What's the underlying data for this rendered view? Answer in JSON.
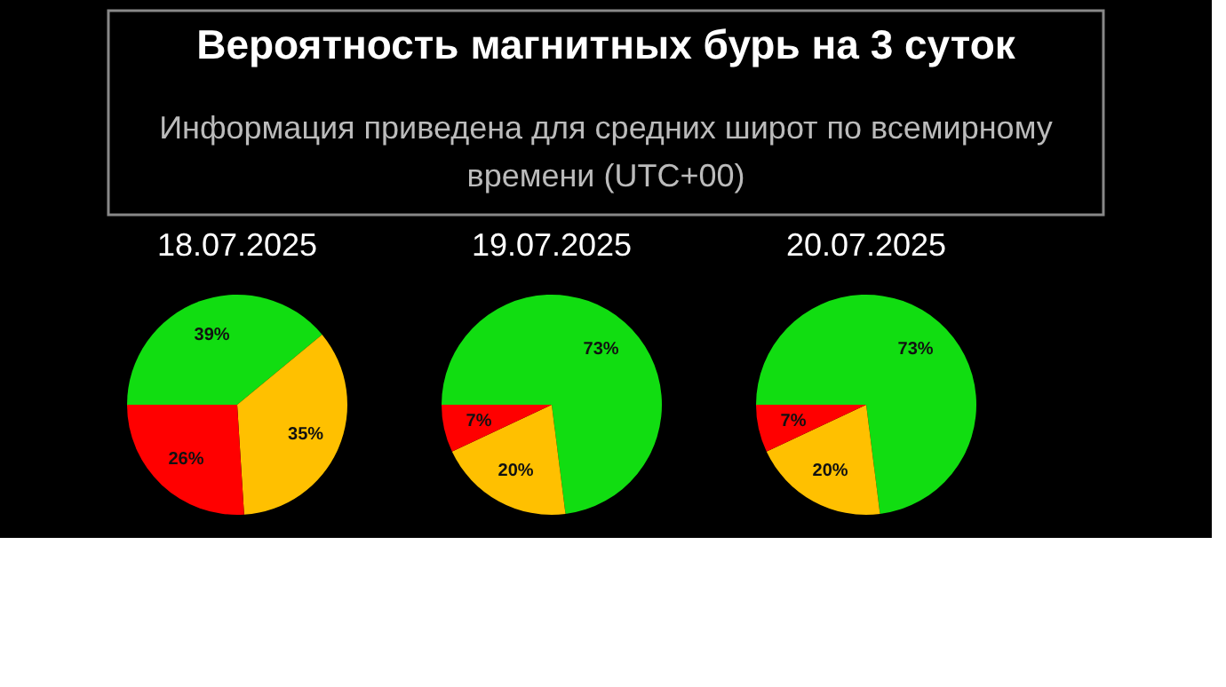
{
  "chart_data": [
    {
      "type": "other",
      "title": "Вероятность магнитных бурь на 3 суток",
      "subtitle": "Информация приведена для средних широт по всемирному времени (UTC+00)"
    },
    {
      "type": "pie",
      "title": "18.07.2025",
      "categories": [
        null,
        null,
        null
      ],
      "values": [
        39,
        35,
        26
      ],
      "colors": [
        "#11dd11",
        "#ffc000",
        "#ff0000"
      ],
      "value_labels": [
        "39%",
        "35%",
        "26%"
      ]
    },
    {
      "type": "pie",
      "title": "19.07.2025",
      "categories": [
        null,
        null,
        null
      ],
      "values": [
        73,
        20,
        7
      ],
      "colors": [
        "#11dd11",
        "#ffc000",
        "#ff0000"
      ],
      "value_labels": [
        "73%",
        "20%",
        "7%"
      ]
    },
    {
      "type": "pie",
      "title": "20.07.2025",
      "categories": [
        null,
        null,
        null
      ],
      "values": [
        73,
        20,
        7
      ],
      "colors": [
        "#11dd11",
        "#ffc000",
        "#ff0000"
      ],
      "value_labels": [
        "73%",
        "20%",
        "7%"
      ]
    }
  ]
}
